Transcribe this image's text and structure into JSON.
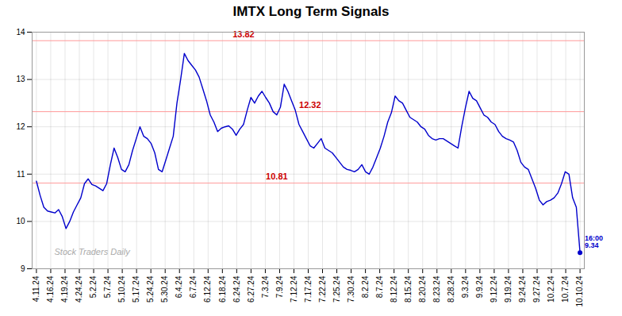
{
  "chart_data": {
    "type": "line",
    "title": "IMTX Long Term Signals",
    "x": [
      0,
      0.2585,
      0.517,
      0.7755,
      1.034,
      1.2925,
      1.551,
      1.8095,
      2.068,
      2.3265,
      2.585,
      2.8435,
      3.102,
      3.3605,
      3.619,
      3.8776,
      4.1361,
      4.3946,
      4.6531,
      4.9116,
      5.1701,
      5.4286,
      5.6871,
      5.9456,
      6.2041,
      6.4626,
      6.7211,
      6.9796,
      7.2381,
      7.4966,
      7.7551,
      8.0136,
      8.2721,
      8.5306,
      8.7891,
      9.0476,
      9.3061,
      9.5646,
      9.8231,
      10.0816,
      10.3401,
      10.5986,
      10.8571,
      11.1156,
      11.3741,
      11.6327,
      11.8912,
      12.1497,
      12.4082,
      12.6667,
      12.9252,
      13.1837,
      13.4422,
      13.7007,
      13.9592,
      14.2177,
      14.4762,
      14.7347,
      14.9932,
      15.2517,
      15.5102,
      15.7687,
      16.0272,
      16.2857,
      16.5442,
      16.8027,
      17.0612,
      17.3197,
      17.5782,
      17.8367,
      18.0952,
      18.3537,
      18.6122,
      18.8707,
      19.1293,
      19.3878,
      19.6463,
      19.9048,
      20.1633,
      20.4218,
      20.6803,
      20.9388,
      21.1973,
      21.4558,
      21.7143,
      21.9728,
      22.2313,
      22.4898,
      22.7483,
      23.0068,
      23.2653,
      23.5238,
      23.7823,
      24.0408,
      24.2993,
      24.5578,
      24.8163,
      25.0748,
      25.3333,
      25.5918,
      25.8503,
      26.1088,
      26.3673,
      26.6259,
      26.8844,
      27.1429,
      27.4014,
      27.6599,
      27.9184,
      28.1769,
      28.4354,
      28.6939,
      28.9524,
      29.2109,
      29.4694,
      29.7279,
      29.9864,
      30.2449,
      30.5034,
      30.7619,
      31.0204,
      31.2789,
      31.5374,
      31.7959,
      32.0544,
      32.3129,
      32.5714,
      32.8299,
      33.0884,
      33.3469,
      33.6054,
      33.8639,
      34.1224,
      34.381,
      34.6395,
      34.898,
      35.1565,
      35.415,
      35.6735,
      35.932,
      36.1905,
      36.449,
      36.7075,
      36.966,
      37.2245,
      37.483,
      37.7415,
      38
    ],
    "values": [
      10.85,
      10.55,
      10.3,
      10.22,
      10.2,
      10.18,
      10.25,
      10.1,
      9.85,
      10.0,
      10.2,
      10.35,
      10.5,
      10.8,
      10.9,
      10.78,
      10.75,
      10.7,
      10.65,
      10.8,
      11.2,
      11.55,
      11.35,
      11.1,
      11.05,
      11.2,
      11.5,
      11.75,
      12.0,
      11.8,
      11.75,
      11.65,
      11.45,
      11.1,
      11.05,
      11.3,
      11.55,
      11.8,
      12.5,
      13.0,
      13.55,
      13.4,
      13.3,
      13.2,
      13.05,
      12.8,
      12.55,
      12.25,
      12.1,
      11.9,
      11.97,
      12.0,
      12.02,
      11.95,
      11.82,
      11.95,
      12.05,
      12.35,
      12.62,
      12.5,
      12.65,
      12.75,
      12.62,
      12.5,
      12.32,
      12.25,
      12.42,
      12.9,
      12.75,
      12.55,
      12.35,
      12.05,
      11.9,
      11.75,
      11.6,
      11.55,
      11.65,
      11.75,
      11.55,
      11.5,
      11.45,
      11.35,
      11.25,
      11.15,
      11.1,
      11.08,
      11.05,
      11.1,
      11.2,
      11.05,
      11.0,
      11.15,
      11.35,
      11.55,
      11.8,
      12.1,
      12.3,
      12.65,
      12.55,
      12.5,
      12.35,
      12.2,
      12.15,
      12.1,
      12.0,
      11.95,
      11.82,
      11.75,
      11.72,
      11.75,
      11.75,
      11.7,
      11.65,
      11.6,
      11.55,
      12.0,
      12.4,
      12.75,
      12.6,
      12.55,
      12.4,
      12.25,
      12.2,
      12.1,
      12.05,
      11.9,
      11.8,
      11.75,
      11.72,
      11.68,
      11.5,
      11.25,
      11.15,
      11.1,
      10.9,
      10.7,
      10.45,
      10.35,
      10.42,
      10.45,
      10.5,
      10.6,
      10.8,
      11.05,
      11.0,
      10.5,
      10.3,
      9.34
    ],
    "color": "#0000cc",
    "xlim": [
      -0.3,
      38.3
    ],
    "xticks": [
      {
        "value": 0,
        "label": "4.11.24"
      },
      {
        "value": 1,
        "label": "4.16.24"
      },
      {
        "value": 2,
        "label": "4.19.24"
      },
      {
        "value": 3,
        "label": "4.24.24"
      },
      {
        "value": 4,
        "label": "5.2.24"
      },
      {
        "value": 5,
        "label": "5.7.24"
      },
      {
        "value": 6,
        "label": "5.10.24"
      },
      {
        "value": 7,
        "label": "5.17.24"
      },
      {
        "value": 8,
        "label": "5.24.24"
      },
      {
        "value": 9,
        "label": "5.30.24"
      },
      {
        "value": 10,
        "label": "6.4.24"
      },
      {
        "value": 11,
        "label": "6.7.24"
      },
      {
        "value": 12,
        "label": "6.12.24"
      },
      {
        "value": 13,
        "label": "6.18.24"
      },
      {
        "value": 14,
        "label": "6.24.24"
      },
      {
        "value": 15,
        "label": "6.27.24"
      },
      {
        "value": 16,
        "label": "7.3.24"
      },
      {
        "value": 17,
        "label": "7.9.24"
      },
      {
        "value": 18,
        "label": "7.12.24"
      },
      {
        "value": 19,
        "label": "7.17.24"
      },
      {
        "value": 20,
        "label": "7.22.24"
      },
      {
        "value": 21,
        "label": "7.25.24"
      },
      {
        "value": 22,
        "label": "7.30.24"
      },
      {
        "value": 23,
        "label": "8.2.24"
      },
      {
        "value": 24,
        "label": "8.7.24"
      },
      {
        "value": 25,
        "label": "8.12.24"
      },
      {
        "value": 26,
        "label": "8.15.24"
      },
      {
        "value": 27,
        "label": "8.20.24"
      },
      {
        "value": 28,
        "label": "8.23.24"
      },
      {
        "value": 29,
        "label": "8.28.24"
      },
      {
        "value": 30,
        "label": "9.3.24"
      },
      {
        "value": 31,
        "label": "9.9.24"
      },
      {
        "value": 32,
        "label": "9.12.24"
      },
      {
        "value": 33,
        "label": "9.19.24"
      },
      {
        "value": 34,
        "label": "9.24.24"
      },
      {
        "value": 35,
        "label": "9.27.24"
      },
      {
        "value": 36,
        "label": "10.2.24"
      },
      {
        "value": 37,
        "label": "10.7.24"
      },
      {
        "value": 38,
        "label": "10.10.24"
      }
    ],
    "ylim": [
      9,
      14
    ],
    "yticks": [
      9,
      10,
      11,
      12,
      13,
      14
    ],
    "grid": true,
    "hlines": [
      {
        "y": 13.82,
        "color": "#ff9999",
        "label": "13.82",
        "label_color": "#cc0000"
      },
      {
        "y": 12.32,
        "color": "#ff9999",
        "label": "12.32",
        "label_color": "#cc0000"
      },
      {
        "y": 10.81,
        "color": "#ff9999",
        "label": "10.81",
        "label_color": "#cc0000"
      }
    ],
    "annotations": [
      {
        "text": "16:00\n9.34",
        "x": 38,
        "y": 9.34,
        "color": "#0000cc"
      },
      {
        "text": "Stock Traders Daily",
        "color": "#aaaaaa"
      }
    ]
  }
}
